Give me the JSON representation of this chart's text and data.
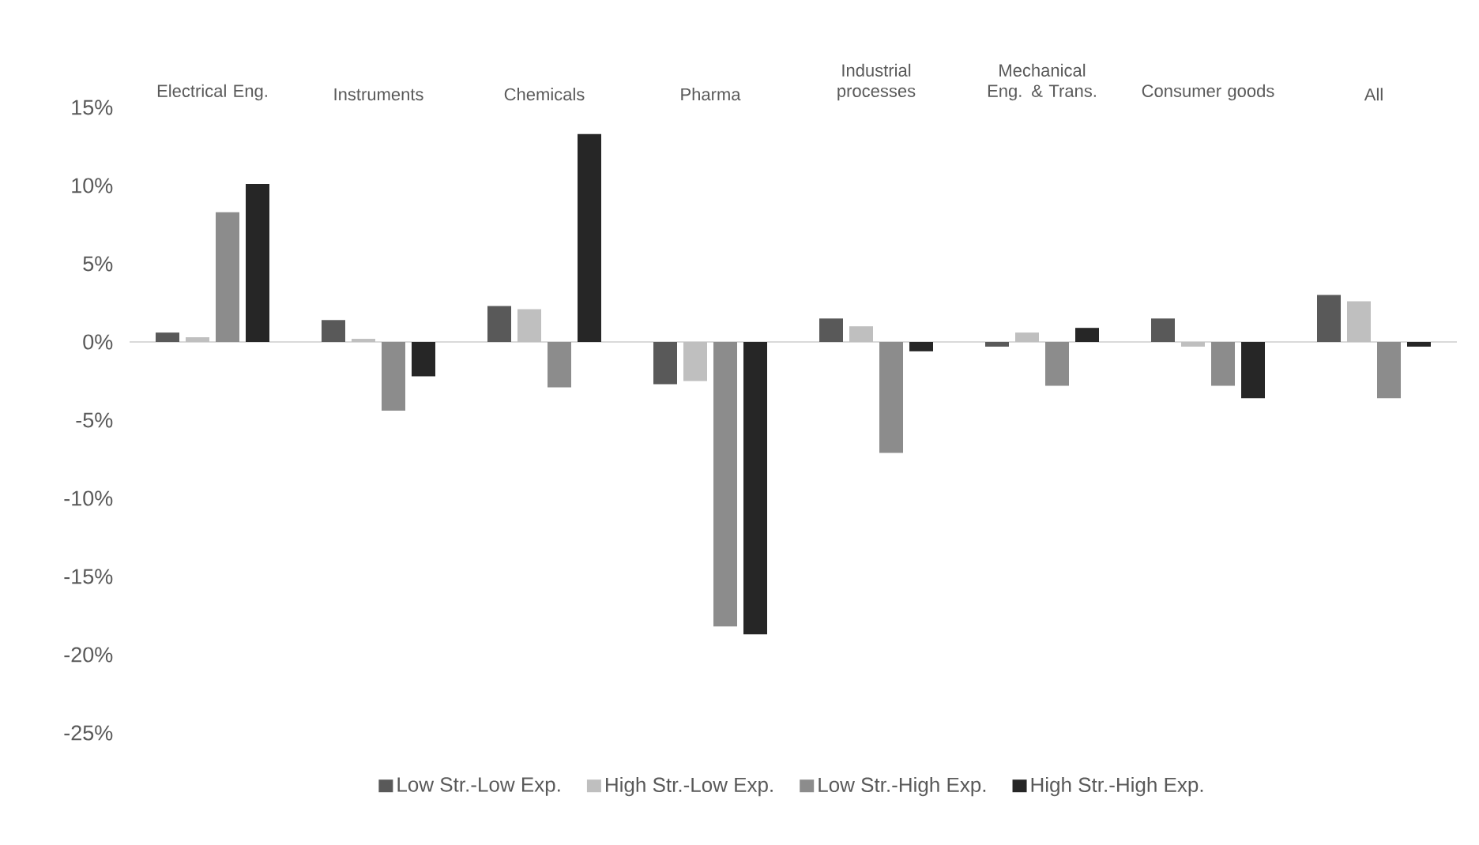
{
  "chart_data": {
    "type": "bar",
    "categories": [
      "Electrical Eng.",
      "Instruments",
      "Chemicals",
      "Pharma",
      "Industrial processes",
      "Mechanical Eng. & Trans.",
      "Consumer goods",
      "All"
    ],
    "series": [
      {
        "name": "Low Str.-Low Exp.",
        "color": "#595959",
        "values": [
          0.6,
          1.4,
          2.3,
          -2.7,
          1.5,
          -0.3,
          1.5,
          3.0
        ]
      },
      {
        "name": "High Str.-Low Exp.",
        "color": "#bfbfbf",
        "values": [
          0.3,
          0.2,
          2.1,
          -2.5,
          1.0,
          0.6,
          -0.3,
          2.6
        ]
      },
      {
        "name": "Low Str.-High Exp.",
        "color": "#8c8c8c",
        "values": [
          8.3,
          -4.4,
          -2.9,
          -18.2,
          -7.1,
          -2.8,
          -2.8,
          -3.6
        ]
      },
      {
        "name": "High Str.-High Exp.",
        "color": "#262626",
        "values": [
          10.1,
          -2.2,
          13.3,
          -18.7,
          -0.6,
          0.9,
          -3.6,
          -0.3
        ]
      }
    ],
    "ylim": [
      -25,
      15
    ],
    "yticks": [
      {
        "value": -25,
        "label": "-25%"
      },
      {
        "value": -20,
        "label": "-20%"
      },
      {
        "value": -15,
        "label": "-15%"
      },
      {
        "value": -10,
        "label": "-10%"
      },
      {
        "value": -5,
        "label": "-5%"
      },
      {
        "value": 0,
        "label": "0%"
      },
      {
        "value": 5,
        "label": "5%"
      },
      {
        "value": 10,
        "label": "10%"
      },
      {
        "value": 15,
        "label": "15%"
      }
    ],
    "legend": "bottom"
  }
}
